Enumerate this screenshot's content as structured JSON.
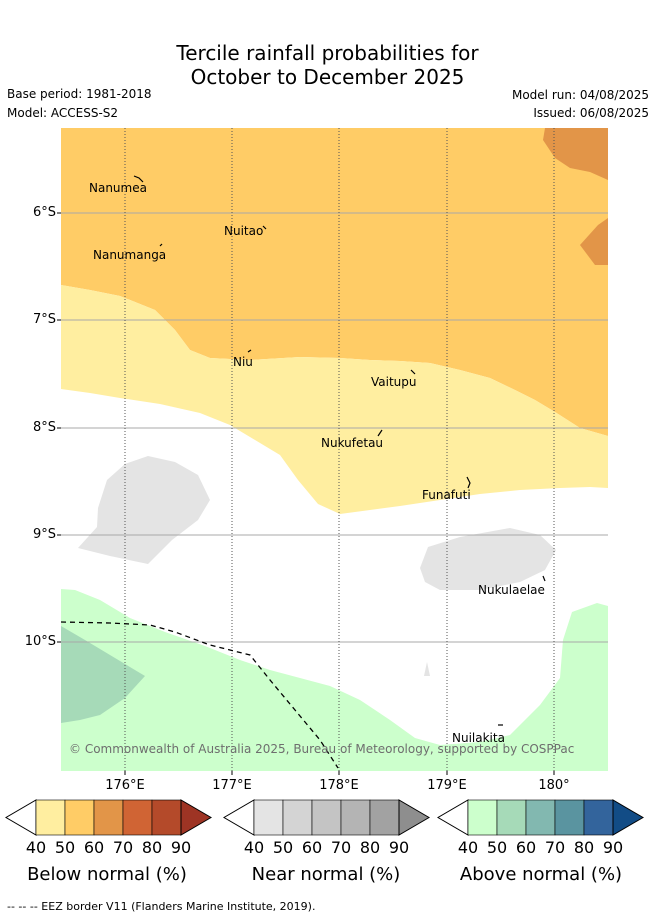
{
  "title": {
    "line1": "Tercile rainfall probabilities for",
    "line2": "October to December 2025"
  },
  "meta": {
    "base_period": "Base period: 1981-2018",
    "model": "Model: ACCESS-S2",
    "model_run": "Model run: 04/08/2025",
    "issued": "Issued: 06/08/2025"
  },
  "axes": {
    "lat_labels": [
      "6°S",
      "7°S",
      "8°S",
      "9°S",
      "10°S"
    ],
    "lon_labels": [
      "176°E",
      "177°E",
      "178°E",
      "179°E",
      "180°"
    ]
  },
  "places": [
    {
      "name": "Nanumea"
    },
    {
      "name": "Nuitao"
    },
    {
      "name": "Nanumanga"
    },
    {
      "name": "Niu"
    },
    {
      "name": "Vaitupu"
    },
    {
      "name": "Nukufetau"
    },
    {
      "name": "Funafuti"
    },
    {
      "name": "Nukulaelae"
    },
    {
      "name": "Nuilakita"
    }
  ],
  "copyright": "© Commonwealth of Australia 2025, Bureau of Meteorology, supported by COSPPac",
  "colorbars": [
    {
      "title": "Below normal (%)",
      "ticks": [
        "40",
        "50",
        "60",
        "70",
        "80",
        "90"
      ],
      "colors": [
        "#ffeea0",
        "#ffcc66",
        "#e29548",
        "#d06434",
        "#b44a2a",
        "#9e3424"
      ]
    },
    {
      "title": "Near normal (%)",
      "ticks": [
        "40",
        "50",
        "60",
        "70",
        "80",
        "90"
      ],
      "colors": [
        "#e4e4e4",
        "#d4d4d4",
        "#c4c4c4",
        "#b4b4b4",
        "#a2a2a2",
        "#8e8e8e"
      ]
    },
    {
      "title": "Above normal (%)",
      "ticks": [
        "40",
        "50",
        "60",
        "70",
        "80",
        "90"
      ],
      "colors": [
        "#ccffcc",
        "#a6dab8",
        "#82b8b0",
        "#5a94a0",
        "#33649c",
        "#124c86"
      ]
    }
  ],
  "footer": "--  --  -- EEZ border V11 (Flanders Marine Institute, 2019)."
}
